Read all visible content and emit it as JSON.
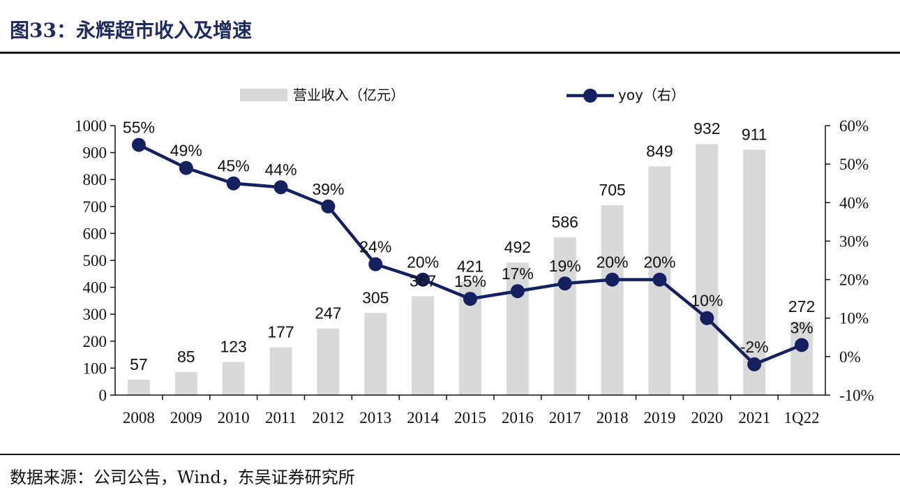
{
  "header": {
    "title": "图33：永辉超市收入及增速"
  },
  "footer": {
    "source": "数据来源：公司公告，Wind，东吴证券研究所"
  },
  "colors": {
    "bar": "#d9d9d9",
    "line": "#142060",
    "axis": "#111111"
  },
  "chart_data": {
    "type": "bar",
    "title": "",
    "categories": [
      "2008",
      "2009",
      "2010",
      "2011",
      "2012",
      "2013",
      "2014",
      "2015",
      "2016",
      "2017",
      "2018",
      "2019",
      "2020",
      "2021",
      "1Q22"
    ],
    "series": [
      {
        "name": "营业收入（亿元）",
        "type": "bar",
        "axis": "left",
        "values": [
          57,
          85,
          123,
          177,
          247,
          305,
          367,
          421,
          492,
          586,
          705,
          849,
          932,
          911,
          272
        ],
        "labels": [
          "57",
          "85",
          "123",
          "177",
          "247",
          "305",
          "367",
          "421",
          "492",
          "586",
          "705",
          "849",
          "932",
          "911",
          "272"
        ]
      },
      {
        "name": "yoy（右）",
        "type": "line",
        "axis": "right",
        "values": [
          55,
          49,
          45,
          44,
          39,
          24,
          20,
          15,
          17,
          19,
          20,
          20,
          10,
          -2,
          3
        ],
        "labels": [
          "55%",
          "49%",
          "45%",
          "44%",
          "39%",
          "24%",
          "20%",
          "15%",
          "17%",
          "19%",
          "20%",
          "20%",
          "10%",
          "-2%",
          "3%"
        ]
      }
    ],
    "y_left": {
      "range": [
        0,
        1000
      ],
      "ticks": [
        "0",
        "100",
        "200",
        "300",
        "400",
        "500",
        "600",
        "700",
        "800",
        "900",
        "1000"
      ]
    },
    "y_right": {
      "range": [
        -10,
        60
      ],
      "ticks": [
        "-10%",
        "0%",
        "10%",
        "20%",
        "30%",
        "40%",
        "50%",
        "60%"
      ]
    },
    "grid": false,
    "legend": "top"
  }
}
